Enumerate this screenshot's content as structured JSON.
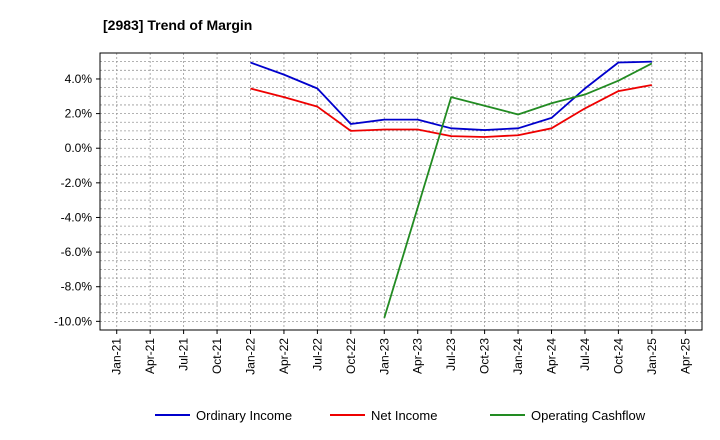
{
  "chart_data": {
    "type": "line",
    "title": "[2983]  Trend of Margin",
    "xlabel": "",
    "ylabel": "",
    "ylim": [
      -10.5,
      5.5
    ],
    "x_ticks": [
      "Jan-21",
      "Apr-21",
      "Jul-21",
      "Oct-21",
      "Jan-22",
      "Apr-22",
      "Jul-22",
      "Oct-22",
      "Jan-23",
      "Apr-23",
      "Jul-23",
      "Oct-23",
      "Jan-24",
      "Apr-24",
      "Jul-24",
      "Oct-24",
      "Jan-25",
      "Apr-25"
    ],
    "y_ticks": [
      {
        "value": 4,
        "label": "4.0%"
      },
      {
        "value": 2,
        "label": "2.0%"
      },
      {
        "value": 0,
        "label": "0.0%"
      },
      {
        "value": -2,
        "label": "-2.0%"
      },
      {
        "value": -4,
        "label": "-4.0%"
      },
      {
        "value": -6,
        "label": "-6.0%"
      },
      {
        "value": -8,
        "label": "-8.0%"
      },
      {
        "value": -10,
        "label": "-10.0%"
      }
    ],
    "grid": true,
    "legend_position": "bottom",
    "series": [
      {
        "name": "Ordinary Income",
        "color": "#0000cc",
        "points": [
          {
            "x": "Jan-22",
            "y": 4.95
          },
          {
            "x": "Apr-22",
            "y": 4.25
          },
          {
            "x": "Jul-22",
            "y": 3.45
          },
          {
            "x": "Oct-22",
            "y": 1.4
          },
          {
            "x": "Jan-23",
            "y": 1.65
          },
          {
            "x": "Apr-23",
            "y": 1.65
          },
          {
            "x": "Jul-23",
            "y": 1.15
          },
          {
            "x": "Oct-23",
            "y": 1.05
          },
          {
            "x": "Jan-24",
            "y": 1.15
          },
          {
            "x": "Apr-24",
            "y": 1.75
          },
          {
            "x": "Jul-24",
            "y": 3.45
          },
          {
            "x": "Oct-24",
            "y": 4.95
          },
          {
            "x": "Jan-25",
            "y": 5.0
          }
        ]
      },
      {
        "name": "Net Income",
        "color": "#ee0000",
        "points": [
          {
            "x": "Jan-22",
            "y": 3.45
          },
          {
            "x": "Apr-22",
            "y": 2.95
          },
          {
            "x": "Jul-22",
            "y": 2.4
          },
          {
            "x": "Oct-22",
            "y": 1.0
          },
          {
            "x": "Jan-23",
            "y": 1.08
          },
          {
            "x": "Apr-23",
            "y": 1.08
          },
          {
            "x": "Jul-23",
            "y": 0.7
          },
          {
            "x": "Oct-23",
            "y": 0.65
          },
          {
            "x": "Jan-24",
            "y": 0.75
          },
          {
            "x": "Apr-24",
            "y": 1.15
          },
          {
            "x": "Jul-24",
            "y": 2.3
          },
          {
            "x": "Oct-24",
            "y": 3.3
          },
          {
            "x": "Jan-25",
            "y": 3.65
          }
        ]
      },
      {
        "name": "Operating Cashflow",
        "color": "#228b22",
        "points": [
          {
            "x": "Jan-23",
            "y": -9.8
          },
          {
            "x": "Jul-23",
            "y": 2.95
          },
          {
            "x": "Oct-23",
            "y": 2.45
          },
          {
            "x": "Jan-24",
            "y": 1.95
          },
          {
            "x": "Apr-24",
            "y": 2.6
          },
          {
            "x": "Jul-24",
            "y": 3.1
          },
          {
            "x": "Oct-24",
            "y": 3.9
          },
          {
            "x": "Jan-25",
            "y": 4.9
          }
        ]
      }
    ]
  }
}
